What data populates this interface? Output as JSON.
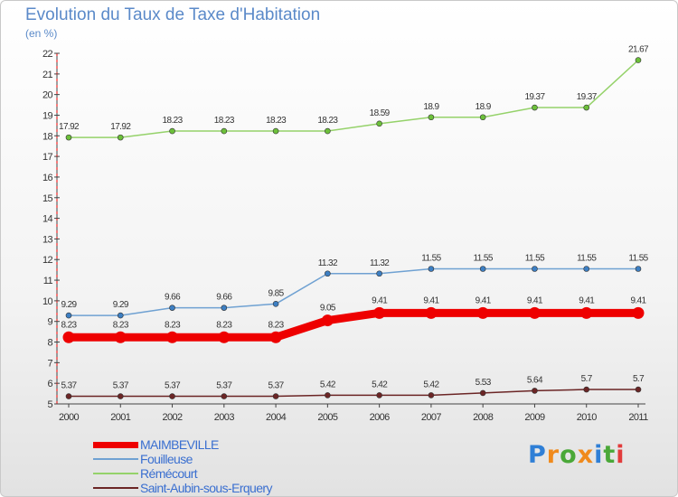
{
  "title": "Evolution du Taux de Taxe d'Habitation",
  "subtitle": "(en %)",
  "logo": {
    "letters": [
      "P",
      "r",
      "o",
      "x",
      "i",
      "t",
      "i"
    ],
    "colors": [
      "#2f7fd6",
      "#f08a1c",
      "#4aa838",
      "#f08a1c",
      "#2f7fd6",
      "#4aa838",
      "#e23b3b"
    ]
  },
  "chart_data": {
    "type": "line",
    "x": [
      "2000",
      "2001",
      "2002",
      "2003",
      "2004",
      "2005",
      "2006",
      "2007",
      "2008",
      "2009",
      "2010",
      "2011"
    ],
    "ylim": [
      5,
      22
    ],
    "yticks": [
      5,
      6,
      7,
      8,
      9,
      10,
      11,
      12,
      13,
      14,
      15,
      16,
      17,
      18,
      19,
      20,
      21,
      22
    ],
    "grid": false,
    "legend_position": "bottom-left",
    "series": [
      {
        "name": "Saint-Aubin-sous-Erquery",
        "color": "#6b2525",
        "marker": "#6b2525",
        "width": 1.5,
        "radius": 3,
        "label_offset": -9,
        "values": [
          5.37,
          5.37,
          5.37,
          5.37,
          5.37,
          5.42,
          5.42,
          5.42,
          5.53,
          5.64,
          5.7,
          5.7
        ],
        "labels": [
          "5.37",
          "5.37",
          "5.37",
          "5.37",
          "5.37",
          "5.42",
          "5.42",
          "5.42",
          "5.53",
          "5.64",
          "5.7",
          "5.7"
        ]
      },
      {
        "name": "Fouilleuse",
        "color": "#6fa1d2",
        "marker": "#3d7fc3",
        "width": 1.5,
        "radius": 3,
        "label_offset": -9,
        "values": [
          9.29,
          9.29,
          9.66,
          9.66,
          9.85,
          11.32,
          11.32,
          11.55,
          11.55,
          11.55,
          11.55,
          11.55
        ],
        "labels": [
          "9.29",
          "9.29",
          "9.66",
          "9.66",
          "9.85",
          "11.32",
          "11.32",
          "11.55",
          "11.55",
          "11.55",
          "11.55",
          "11.55"
        ]
      },
      {
        "name": "Rémécourt",
        "color": "#95d26a",
        "marker": "#6cc03a",
        "width": 1.5,
        "radius": 3,
        "label_offset": -9,
        "values": [
          17.92,
          17.92,
          18.23,
          18.23,
          18.23,
          18.23,
          18.59,
          18.9,
          18.9,
          19.37,
          19.37,
          21.67
        ],
        "labels": [
          "17.92",
          "17.92",
          "18.23",
          "18.23",
          "18.23",
          "18.23",
          "18.59",
          "18.9",
          "18.9",
          "19.37",
          "19.37",
          "21.67"
        ]
      },
      {
        "name": "MAIMBEVILLE",
        "color": "#ee0000",
        "marker": "#ee0000",
        "width": 9,
        "radius": 6.5,
        "label_offset": -11,
        "values": [
          8.23,
          8.23,
          8.23,
          8.23,
          8.23,
          9.05,
          9.41,
          9.41,
          9.41,
          9.41,
          9.41,
          9.41
        ],
        "labels": [
          "8.23",
          "8.23",
          "8.23",
          "8.23",
          "8.23",
          "9.05",
          "9.41",
          "9.41",
          "9.41",
          "9.41",
          "9.41",
          "9.41"
        ]
      }
    ],
    "legend": [
      {
        "name": "MAIMBEVILLE",
        "color": "#ee0000",
        "text_color": "#3a6fd0",
        "thick": 7
      },
      {
        "name": "Fouilleuse",
        "color": "#6fa1d2",
        "text_color": "#3a6fd0",
        "thick": 2
      },
      {
        "name": "Rémécourt",
        "color": "#95d26a",
        "text_color": "#3a6fd0",
        "thick": 2
      },
      {
        "name": "Saint-Aubin-sous-Erquery",
        "color": "#6b2525",
        "text_color": "#3a6fd0",
        "thick": 2
      }
    ]
  }
}
